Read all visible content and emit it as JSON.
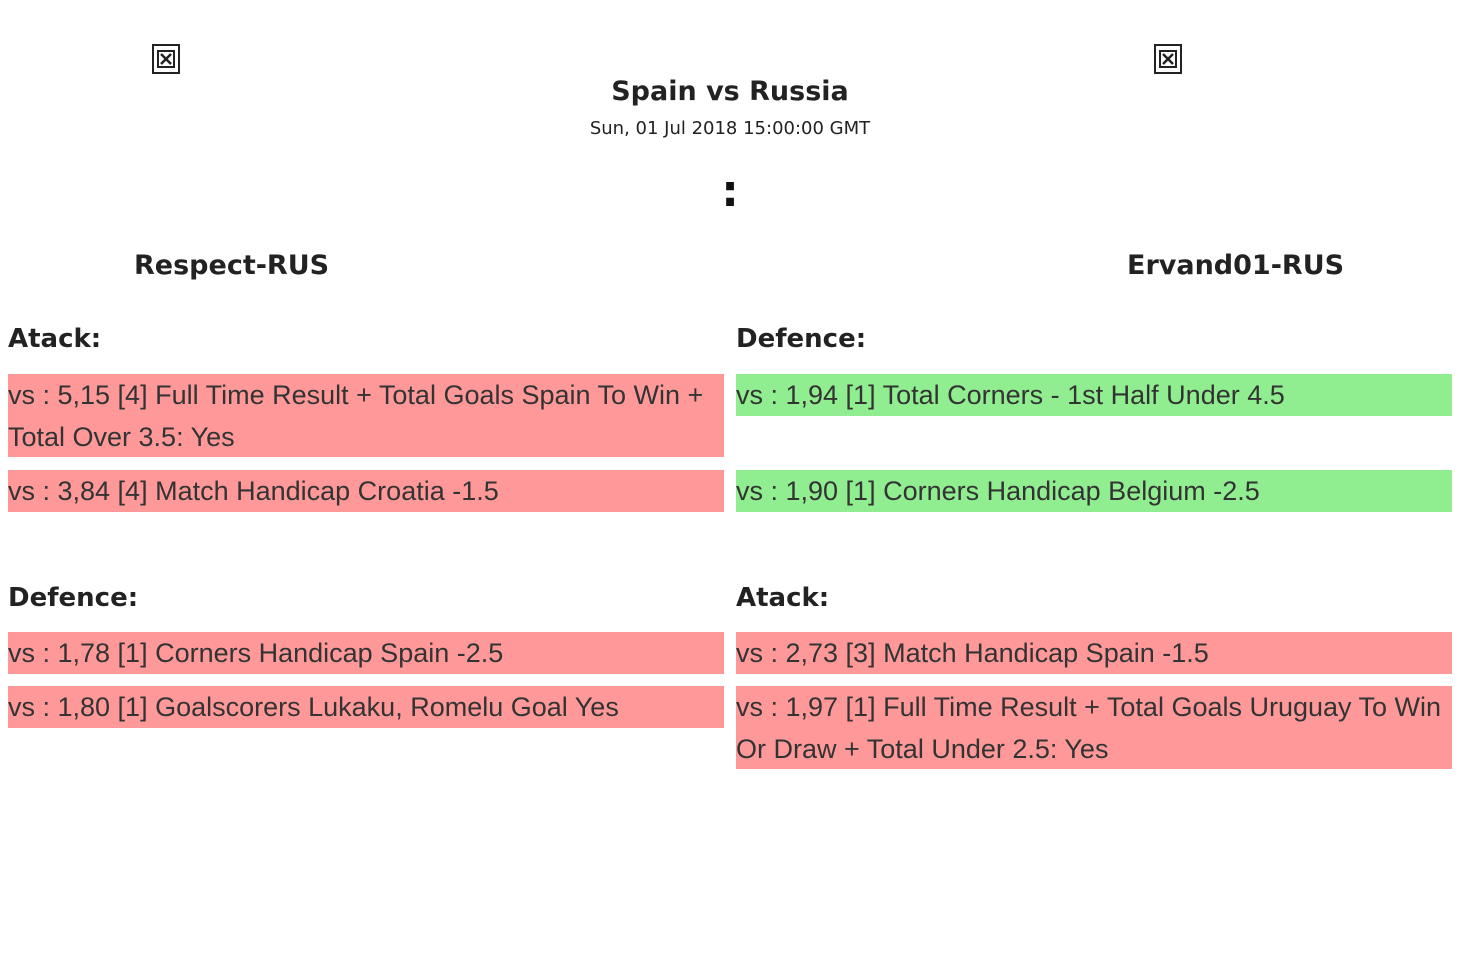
{
  "match": {
    "title": "Spain vs Russia",
    "date": "Sun, 01 Jul 2018 15:00:00 GMT",
    "score": ":"
  },
  "players": {
    "left": "Respect-RUS",
    "right": "Ervand01-RUS"
  },
  "colors": {
    "loss": "#ff9999",
    "win": "#90ee90"
  },
  "left": {
    "top_section": {
      "label": "Atack:",
      "bets": [
        {
          "text": "vs : 5,15 [4] Full Time Result + Total Goals Spain To Win + Total Over 3.5: Yes",
          "status": "loss"
        },
        {
          "text": "vs : 3,84 [4] Match Handicap Croatia -1.5",
          "status": "loss"
        }
      ]
    },
    "bottom_section": {
      "label": "Defence:",
      "bets": [
        {
          "text": "vs : 1,78 [1] Corners Handicap Spain -2.5",
          "status": "loss"
        },
        {
          "text": "vs : 1,80 [1] Goalscorers Lukaku, Romelu Goal Yes",
          "status": "loss"
        }
      ]
    }
  },
  "right": {
    "top_section": {
      "label": "Defence:",
      "bets": [
        {
          "text": "vs : 1,94 [1] Total Corners - 1st Half Under 4.5",
          "status": "win"
        },
        {
          "text": "vs : 1,90 [1] Corners Handicap Belgium -2.5",
          "status": "win"
        }
      ]
    },
    "bottom_section": {
      "label": "Atack:",
      "bets": [
        {
          "text": "vs : 2,73 [3] Match Handicap Spain -1.5",
          "status": "loss"
        },
        {
          "text": "vs : 1,97 [1] Full Time Result + Total Goals Uruguay To Win Or Draw + Total Under 2.5: Yes",
          "status": "loss"
        }
      ]
    }
  }
}
